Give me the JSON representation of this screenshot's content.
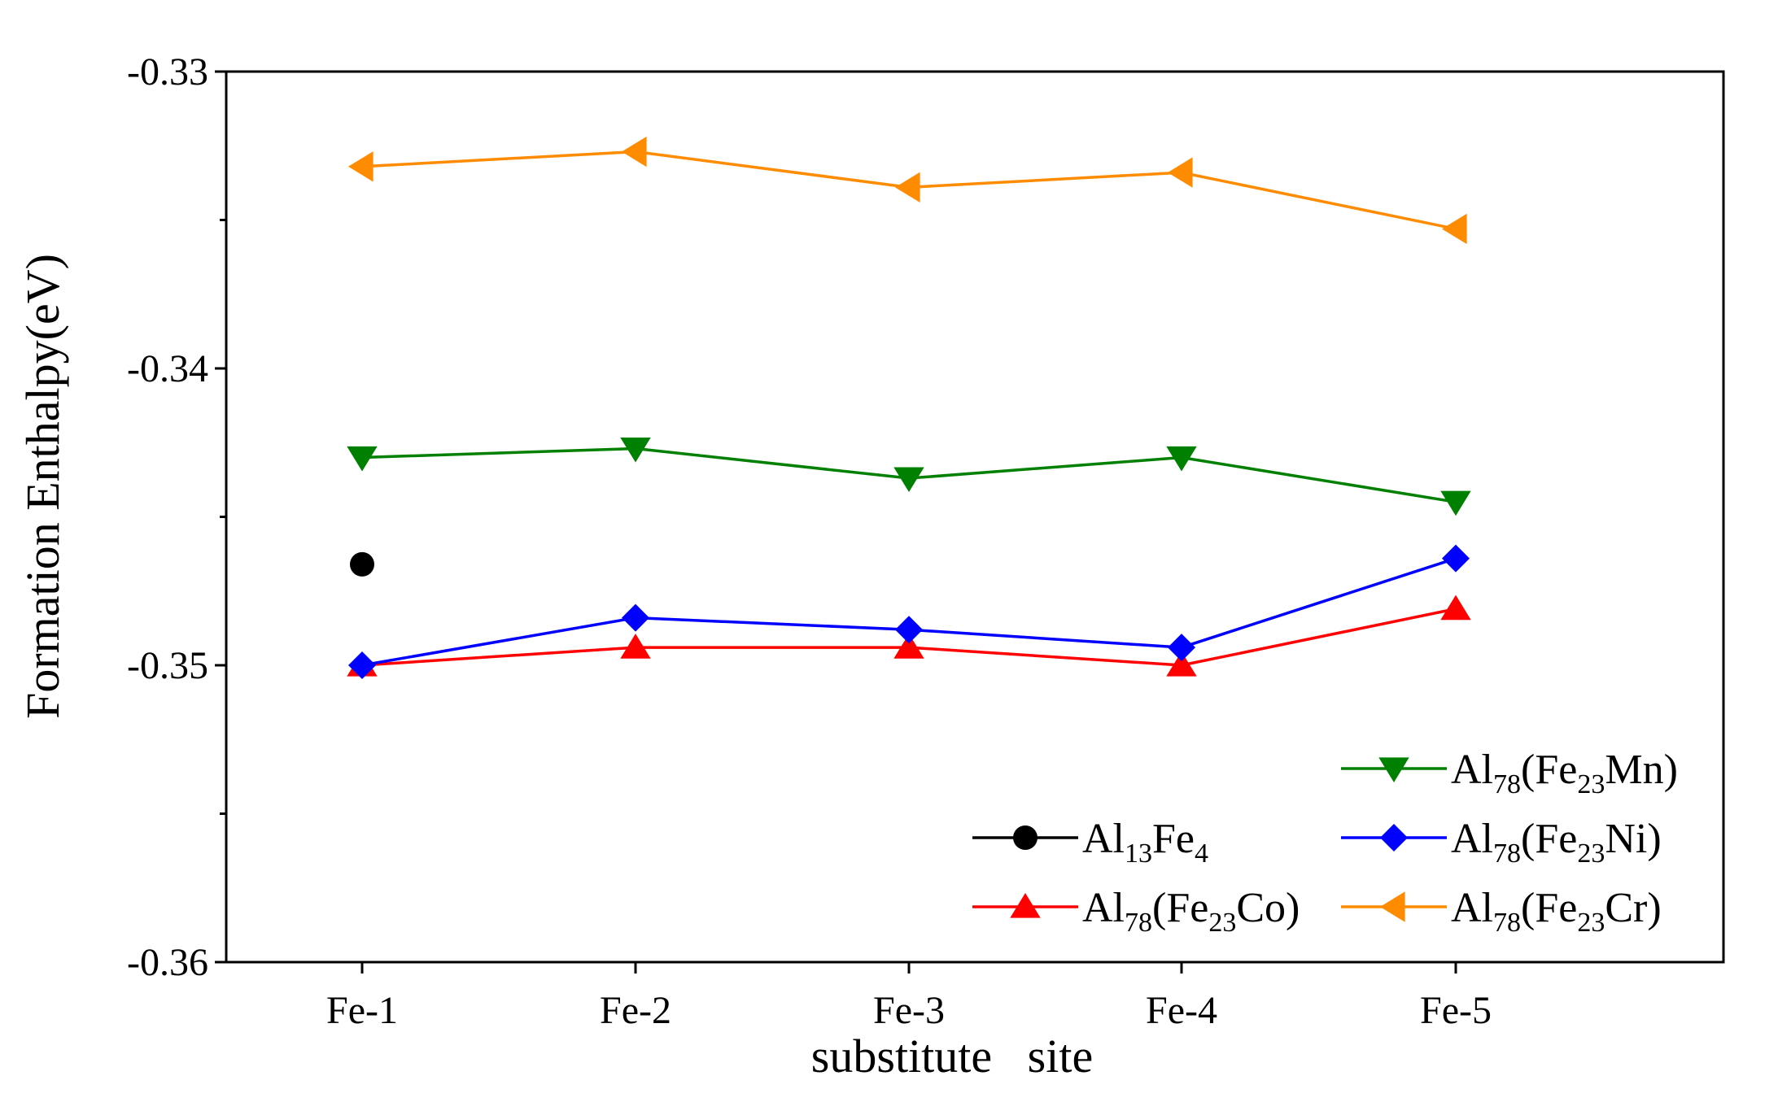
{
  "chart_data": {
    "type": "line",
    "title": "",
    "xlabel": "substitute   site",
    "ylabel": "Formation Enthalpy(eV)",
    "categories": [
      "Fe-1",
      "Fe-2",
      "Fe-3",
      "Fe-4",
      "Fe-5"
    ],
    "ylim": [
      -0.36,
      -0.33
    ],
    "yticks": [
      -0.36,
      -0.35,
      -0.34,
      -0.33
    ],
    "ytick_labels": [
      "-0.36",
      "-0.35",
      "-0.34",
      "-0.33"
    ],
    "grid": false,
    "legend_position": "bottom-right",
    "series": [
      {
        "name": "Al13Fe4",
        "legend": {
          "base": "Al",
          "sub1": "13",
          "mid": "Fe",
          "sub2": "4",
          "tail": ""
        },
        "color": "#000000",
        "marker": "circle",
        "line": false,
        "values": [
          -0.3466,
          null,
          null,
          null,
          null
        ]
      },
      {
        "name": "Al78(Fe23Co)",
        "legend": {
          "base": "Al",
          "sub1": "78",
          "mid": "(Fe",
          "sub2": "23",
          "tail": "Co)"
        },
        "color": "#ff0000",
        "marker": "triangle-up",
        "line": true,
        "values": [
          -0.35,
          -0.3494,
          -0.3494,
          -0.35,
          -0.3481
        ]
      },
      {
        "name": "Al78(Fe23Mn)",
        "legend": {
          "base": "Al",
          "sub1": "78",
          "mid": "(Fe",
          "sub2": "23",
          "tail": "Mn)"
        },
        "color": "#008000",
        "marker": "triangle-down",
        "line": true,
        "values": [
          -0.343,
          -0.3427,
          -0.3437,
          -0.343,
          -0.3445
        ]
      },
      {
        "name": "Al78(Fe23Ni)",
        "legend": {
          "base": "Al",
          "sub1": "78",
          "mid": "(Fe",
          "sub2": "23",
          "tail": "Ni)"
        },
        "color": "#0000ff",
        "marker": "diamond",
        "line": true,
        "values": [
          -0.35,
          -0.3484,
          -0.3488,
          -0.3494,
          -0.3464
        ]
      },
      {
        "name": "Al78(Fe23Cr)",
        "legend": {
          "base": "Al",
          "sub1": "78",
          "mid": "(Fe",
          "sub2": "23",
          "tail": "Cr)"
        },
        "color": "#ff8c00",
        "marker": "triangle-left",
        "line": true,
        "values": [
          -0.3332,
          -0.3327,
          -0.3339,
          -0.3334,
          -0.3353
        ]
      }
    ],
    "legend_layout": [
      [
        "Al78(Fe23Mn)"
      ],
      [
        "Al13Fe4",
        "Al78(Fe23Ni)"
      ],
      [
        "Al78(Fe23Co)",
        "Al78(Fe23Cr)"
      ]
    ]
  }
}
